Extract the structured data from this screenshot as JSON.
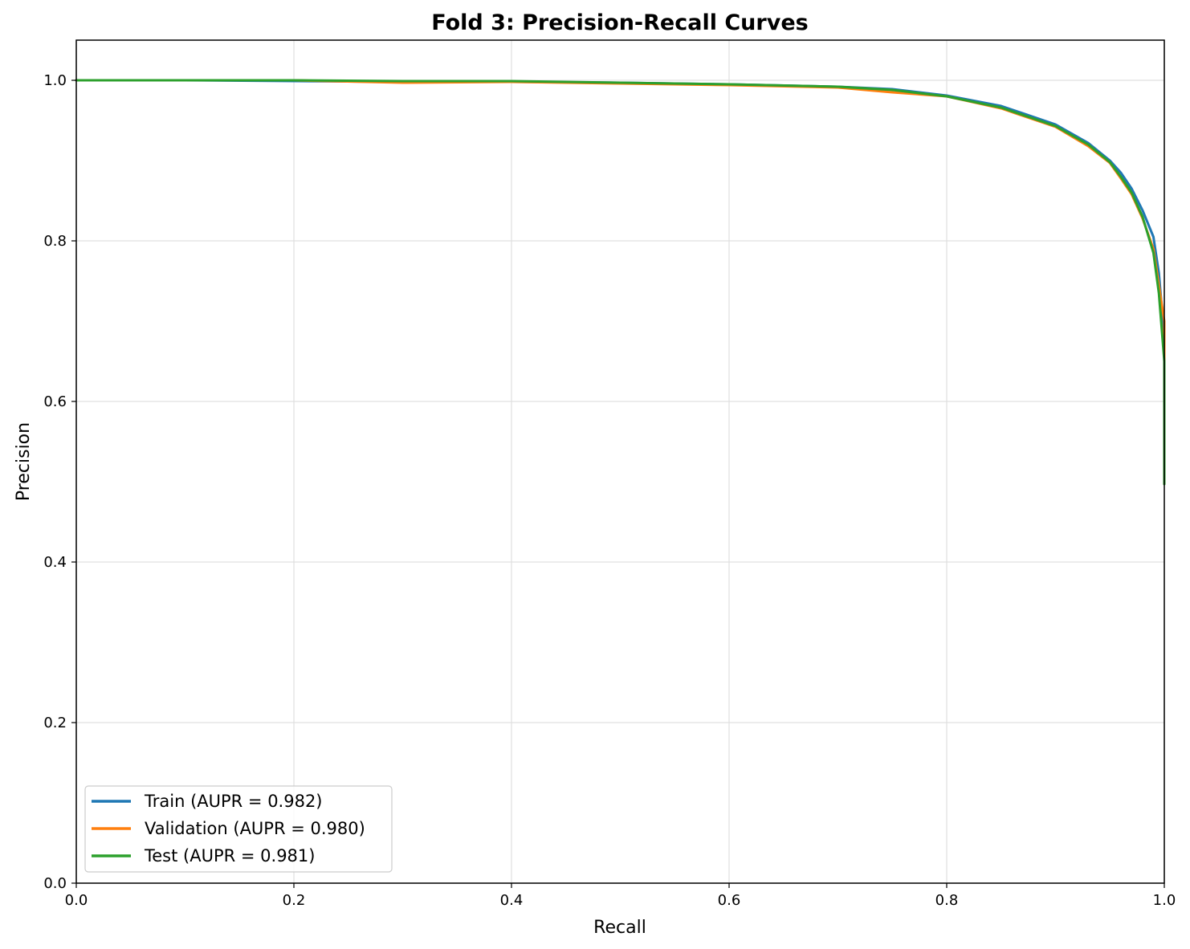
{
  "chart_data": {
    "type": "line",
    "title": "Fold 3: Precision-Recall Curves",
    "xlabel": "Recall",
    "ylabel": "Precision",
    "xlim": [
      0.0,
      1.0
    ],
    "ylim": [
      0.0,
      1.05
    ],
    "xticks": [
      0.0,
      0.2,
      0.4,
      0.6,
      0.8,
      1.0
    ],
    "xtick_labels": [
      "0.0",
      "0.2",
      "0.4",
      "0.6",
      "0.8",
      "1.0"
    ],
    "yticks": [
      0.0,
      0.2,
      0.4,
      0.6,
      0.8,
      1.0
    ],
    "ytick_labels": [
      "0.0",
      "0.2",
      "0.4",
      "0.6",
      "0.8",
      "1.0"
    ],
    "grid": true,
    "legend_position": "lower-left",
    "series": [
      {
        "name": "Train (AUPR = 0.982)",
        "color": "#1f77b4",
        "x": [
          0.0,
          0.1,
          0.2,
          0.3,
          0.4,
          0.5,
          0.6,
          0.7,
          0.75,
          0.8,
          0.85,
          0.9,
          0.93,
          0.95,
          0.96,
          0.97,
          0.98,
          0.99,
          0.995,
          1.0,
          1.0
        ],
        "y": [
          1.0,
          1.0,
          0.999,
          0.998,
          0.998,
          0.997,
          0.995,
          0.992,
          0.989,
          0.981,
          0.968,
          0.945,
          0.922,
          0.9,
          0.885,
          0.865,
          0.838,
          0.805,
          0.76,
          0.68,
          0.5
        ]
      },
      {
        "name": "Validation (AUPR = 0.980)",
        "color": "#ff7f0e",
        "x": [
          0.0,
          0.1,
          0.2,
          0.3,
          0.4,
          0.5,
          0.6,
          0.7,
          0.75,
          0.8,
          0.85,
          0.9,
          0.93,
          0.95,
          0.96,
          0.97,
          0.98,
          0.99,
          0.995,
          1.0,
          1.0
        ],
        "y": [
          1.0,
          1.0,
          1.0,
          0.997,
          0.998,
          0.996,
          0.994,
          0.991,
          0.985,
          0.98,
          0.965,
          0.942,
          0.918,
          0.897,
          0.878,
          0.858,
          0.828,
          0.79,
          0.745,
          0.7,
          0.51
        ]
      },
      {
        "name": "Test (AUPR = 0.981)",
        "color": "#2ca02c",
        "x": [
          0.0,
          0.1,
          0.2,
          0.3,
          0.4,
          0.5,
          0.6,
          0.7,
          0.75,
          0.8,
          0.85,
          0.9,
          0.93,
          0.95,
          0.96,
          0.97,
          0.98,
          0.99,
          0.995,
          1.0,
          1.0
        ],
        "y": [
          1.0,
          1.0,
          1.0,
          0.999,
          0.999,
          0.997,
          0.995,
          0.992,
          0.988,
          0.98,
          0.966,
          0.943,
          0.92,
          0.898,
          0.88,
          0.86,
          0.83,
          0.785,
          0.735,
          0.65,
          0.497
        ]
      }
    ]
  }
}
